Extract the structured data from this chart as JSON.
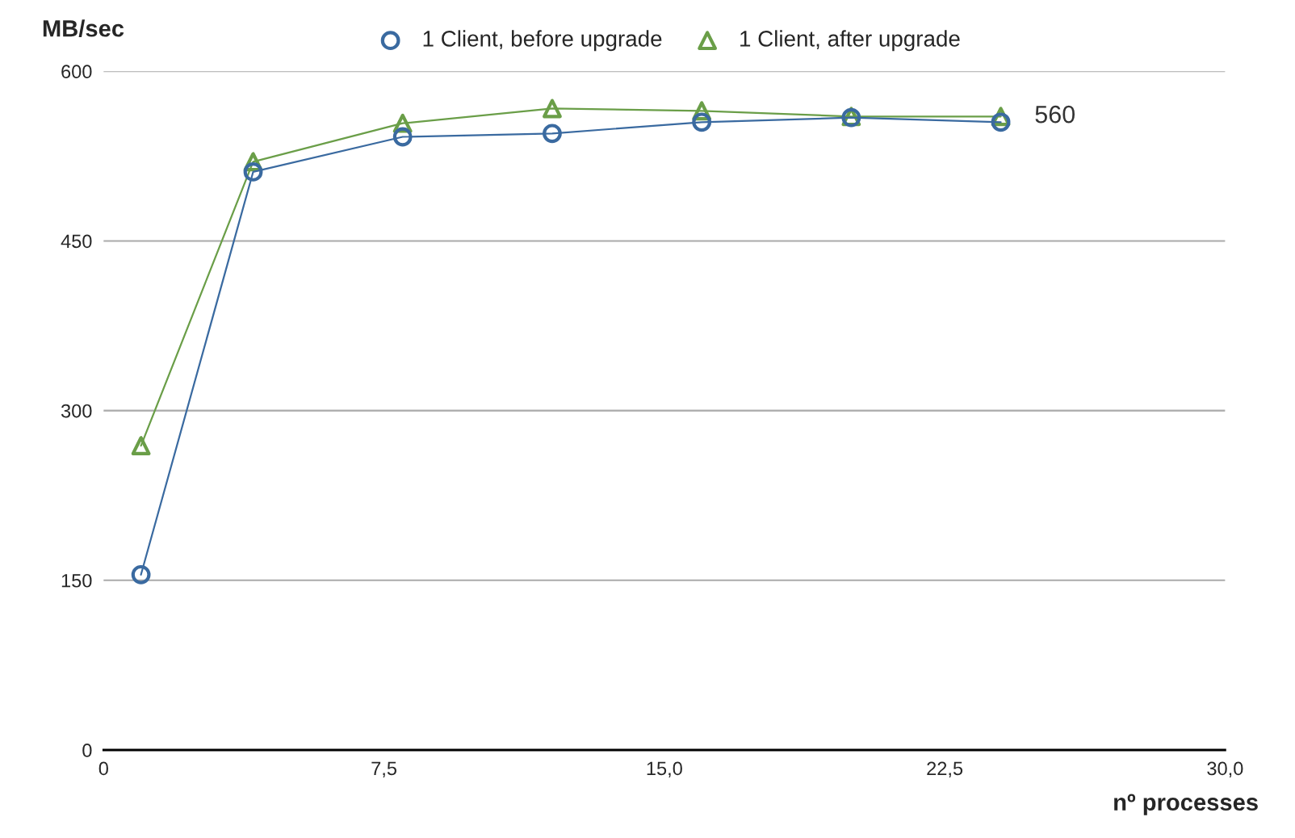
{
  "chart_data": {
    "type": "line",
    "xlabel": "nº processes",
    "ylabel": "MB/sec",
    "x": [
      1,
      4,
      8,
      12,
      16,
      20,
      24
    ],
    "series": [
      {
        "name": "1 Client, before upgrade",
        "color": "#3a6aa0",
        "marker": "circle",
        "values": [
          155,
          511,
          542,
          545,
          555,
          559,
          555
        ]
      },
      {
        "name": "1 Client, after upgrade",
        "color": "#6a9e48",
        "marker": "triangle",
        "values": [
          269,
          520,
          554,
          567,
          565,
          560,
          560
        ]
      }
    ],
    "xlim": [
      0,
      30
    ],
    "xticks": [
      0,
      {
        "value": 7.5,
        "label": "7,5"
      },
      {
        "value": 15,
        "label": "15,0"
      },
      {
        "value": 22.5,
        "label": "22,5"
      },
      {
        "value": 30,
        "label": "30,0"
      }
    ],
    "ylim": [
      0,
      600
    ],
    "yticks": [
      0,
      150,
      300,
      450,
      600
    ],
    "annotations": [
      {
        "text": "560",
        "x": 24,
        "y": 560
      }
    ],
    "grid": "y",
    "legend": "top"
  }
}
